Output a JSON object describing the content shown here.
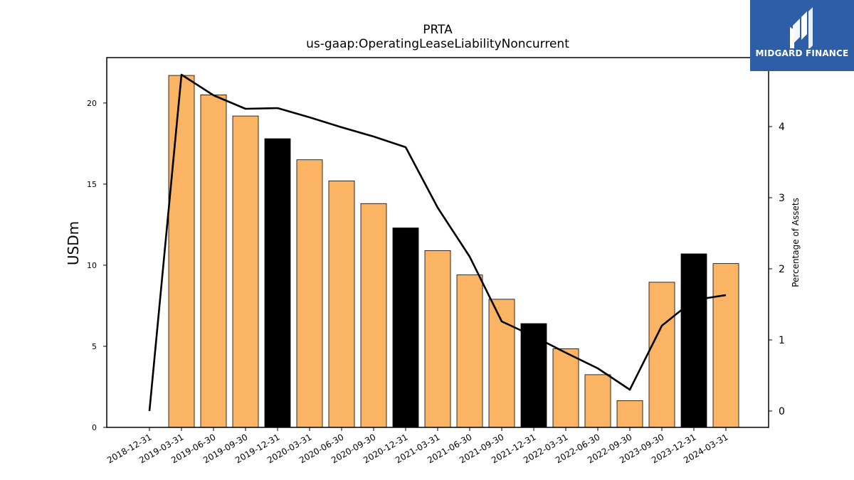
{
  "brand": {
    "name": "MIDGARD FINANCE",
    "logo_color": "#2f5ea8"
  },
  "chart_data": {
    "type": "bar",
    "title": "PRTA",
    "subtitle": "us-gaap:OperatingLeaseLiabilityNoncurrent",
    "ylabel": "USDm",
    "y2label": "Percentage of Assets",
    "categories": [
      "2018-12-31",
      "2019-03-31",
      "2019-06-30",
      "2019-09-30",
      "2019-12-31",
      "2020-03-31",
      "2020-06-30",
      "2020-09-30",
      "2020-12-31",
      "2021-03-31",
      "2021-06-30",
      "2021-09-30",
      "2021-12-31",
      "2022-03-31",
      "2022-06-30",
      "2022-09-30",
      "2023-09-30",
      "2023-12-31",
      "2024-03-31"
    ],
    "series": [
      {
        "kind": "bar",
        "values": [
          null,
          21.7,
          20.5,
          19.2,
          17.8,
          16.5,
          15.2,
          13.8,
          12.3,
          10.9,
          9.4,
          7.9,
          6.4,
          4.85,
          3.25,
          1.65,
          8.95,
          10.7,
          10.1
        ],
        "colors": [
          "#fbb463",
          "#fbb463",
          "#fbb463",
          "#fbb463",
          "#000000",
          "#fbb463",
          "#fbb463",
          "#fbb463",
          "#000000",
          "#fbb463",
          "#fbb463",
          "#fbb463",
          "#000000",
          "#fbb463",
          "#fbb463",
          "#fbb463",
          "#fbb463",
          "#000000",
          "#fbb463"
        ]
      },
      {
        "kind": "line",
        "axis": "right",
        "color": "#000000",
        "values": [
          0.0,
          4.73,
          4.44,
          4.25,
          4.26,
          4.13,
          3.99,
          3.86,
          3.71,
          2.86,
          2.17,
          1.26,
          1.05,
          0.82,
          0.6,
          0.3,
          1.2,
          1.56,
          1.63
        ]
      }
    ],
    "ylim": [
      0,
      22.8
    ],
    "yticks": [
      0,
      5,
      10,
      15,
      20
    ],
    "y2lim": [
      -0.23,
      4.97
    ],
    "y2ticks": [
      0,
      1,
      2,
      3,
      4
    ],
    "grid": false
  }
}
